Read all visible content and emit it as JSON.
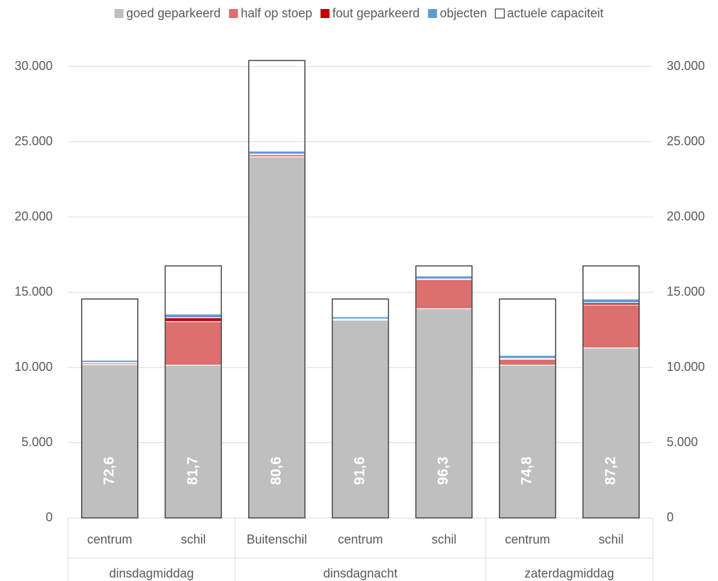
{
  "chart_data": {
    "type": "stacked_bar",
    "groups": [
      {
        "name": "dinsdagmiddag",
        "categories": [
          "centrum",
          "schil"
        ]
      },
      {
        "name": "dinsdagnacht",
        "categories": [
          "Buitenschil",
          "centrum",
          "schil"
        ]
      },
      {
        "name": "zaterdagmiddag",
        "categories": [
          "centrum",
          "schil"
        ]
      }
    ],
    "series": [
      {
        "name": "goed geparkeerd",
        "color": "#bfbfbf",
        "values": [
          10200,
          10150,
          24000,
          13150,
          13900,
          10150,
          11300
        ]
      },
      {
        "name": "half op stoep",
        "color": "#dd6f6f",
        "values": [
          100,
          2900,
          150,
          50,
          1950,
          400,
          2850
        ]
      },
      {
        "name": "fout geparkeerd",
        "color": "#c00000",
        "values": [
          30,
          250,
          30,
          20,
          30,
          50,
          150
        ]
      },
      {
        "name": "objecten",
        "color": "#5b9bd5",
        "values": [
          150,
          250,
          200,
          150,
          200,
          200,
          250
        ]
      },
      {
        "name": "actuele capaciteit",
        "color": "#404040",
        "style": "outline",
        "values": [
          14550,
          16750,
          30400,
          14550,
          16750,
          14550,
          16750
        ]
      }
    ],
    "occupancy": {
      "values": [
        72.6,
        81.7,
        80.6,
        91.6,
        96.3,
        74.8,
        87.2
      ],
      "value_labels": [
        "72,6",
        "81,7",
        "80,6",
        "91,6",
        "96,3",
        "74,8",
        "87,2"
      ]
    },
    "ylim": [
      0,
      30000
    ],
    "yticks": [
      0,
      {
        "value": 5000,
        "label": "5.000"
      },
      {
        "value": 10000,
        "label": "10.000"
      },
      {
        "value": 15000,
        "label": "15.000"
      },
      {
        "value": 20000,
        "label": "20.000"
      },
      {
        "value": 25000,
        "label": "25.000"
      },
      {
        "value": 30000,
        "label": "30.000"
      }
    ],
    "y2lim": [
      0,
      30000
    ],
    "y2ticks": [
      0,
      {
        "value": 5000,
        "label": "5.000"
      },
      {
        "value": 10000,
        "label": "10.000"
      },
      {
        "value": 15000,
        "label": "15.000"
      },
      {
        "value": 20000,
        "label": "20.000"
      },
      {
        "value": 25000,
        "label": "25.000"
      },
      {
        "value": 30000,
        "label": "30.000"
      }
    ],
    "grid": true,
    "legend": "top"
  }
}
